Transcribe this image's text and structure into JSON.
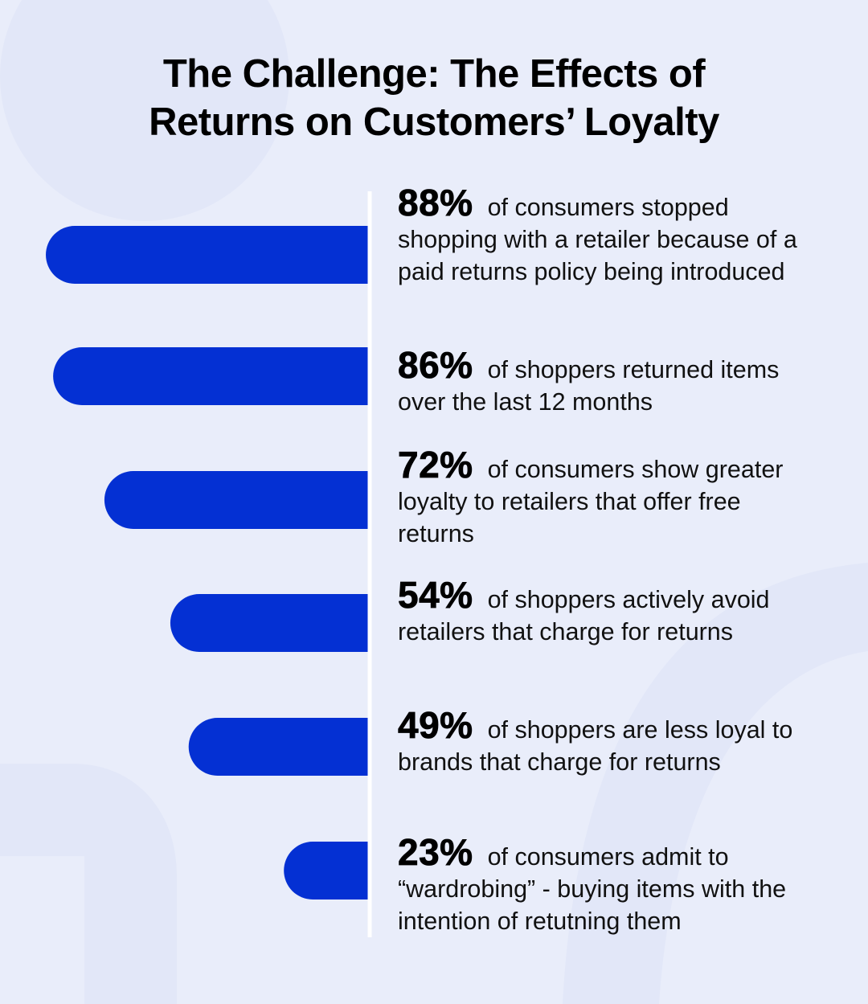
{
  "title": {
    "line1": "The Challenge: The Effects of",
    "line2": "Returns on Customers’ Loyalty"
  },
  "colors": {
    "background": "#e9edfa",
    "bar": "#0430d3",
    "axis": "#ffffff"
  },
  "chart_data": {
    "type": "bar",
    "orientation": "horizontal",
    "direction": "leftward",
    "xlim": [
      0,
      100
    ],
    "categories": [
      "of consumers stopped shopping with a retailer because of a paid returns policy being introduced",
      "of shoppers returned items over the last 12 months",
      "of consumers show greater loyalty to retailers that offer free returns",
      "of shoppers actively avoid retailers that charge for returns",
      "of shoppers are less loyal to brands that charge for returns",
      "of consumers admit to “wardrobing” - buying items with the intention of retutning them"
    ],
    "values": [
      88,
      86,
      72,
      54,
      49,
      23
    ],
    "labels": [
      "88%",
      "86%",
      "72%",
      "54%",
      "49%",
      "23%"
    ]
  }
}
